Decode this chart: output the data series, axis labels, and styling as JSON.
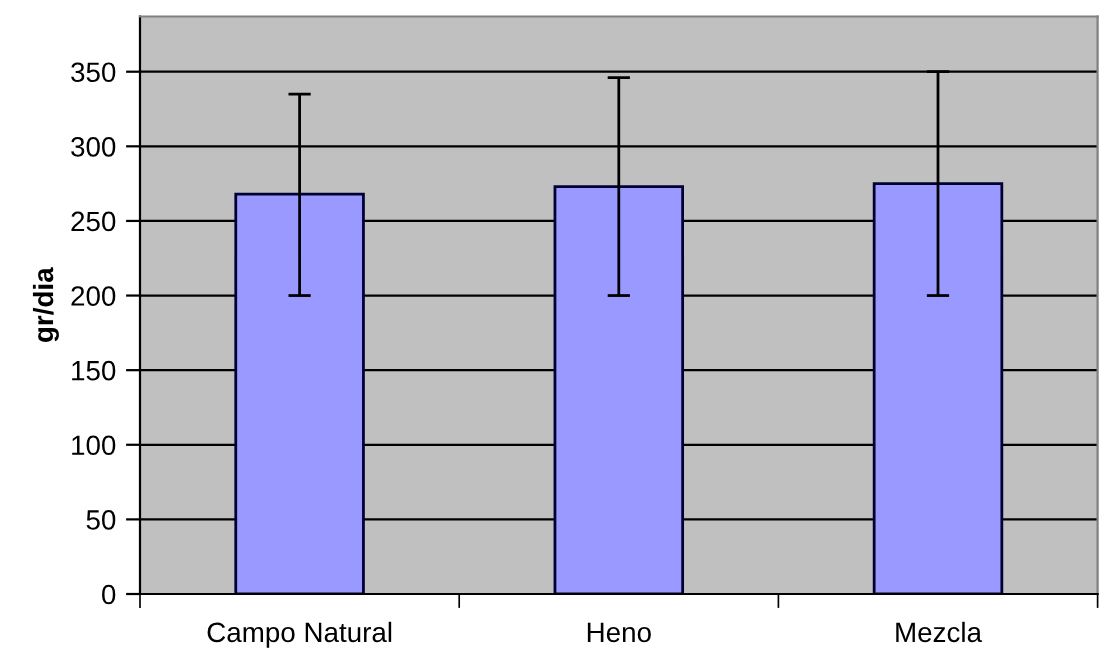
{
  "chart_data": {
    "type": "bar",
    "ylabel": "gr/dia",
    "categories": [
      "Campo Natural",
      "Heno",
      "Mezcla"
    ],
    "values": [
      268,
      273,
      275
    ],
    "errors": [
      [
        200,
        335
      ],
      [
        200,
        346
      ],
      [
        200,
        350
      ]
    ],
    "color": "#9999ff",
    "ylim": [
      0,
      387
    ],
    "yticks": [
      0,
      50,
      100,
      150,
      200,
      250,
      300,
      350
    ],
    "grid": "y",
    "legend": false
  }
}
